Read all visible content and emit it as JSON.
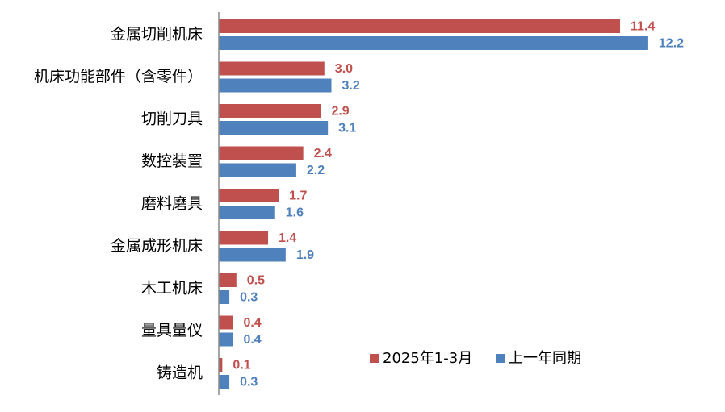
{
  "chart_data": {
    "type": "bar",
    "orientation": "horizontal",
    "categories": [
      "金属切削机床",
      "机床功能部件（含零件）",
      "切削刀具",
      "数控装置",
      "磨料磨具",
      "金属成形机床",
      "木工机床",
      "量具量仪",
      "铸造机"
    ],
    "series": [
      {
        "name": "2025年1-3月",
        "color": "#C0504D",
        "values": [
          11.4,
          3.0,
          2.9,
          2.4,
          1.7,
          1.4,
          0.5,
          0.4,
          0.1
        ],
        "labels": [
          "11.4",
          "3.0",
          "2.9",
          "2.4",
          "1.7",
          "1.4",
          "0.5",
          "0.4",
          "0.1"
        ]
      },
      {
        "name": "上一年同期",
        "color": "#4F81BD",
        "values": [
          12.2,
          3.2,
          3.1,
          2.2,
          1.6,
          1.9,
          0.3,
          0.4,
          0.3
        ],
        "labels": [
          "12.2",
          "3.2",
          "3.1",
          "2.2",
          "1.6",
          "1.9",
          "0.3",
          "0.4",
          "0.3"
        ]
      }
    ],
    "legend_position": "bottom-right",
    "grid": false
  }
}
